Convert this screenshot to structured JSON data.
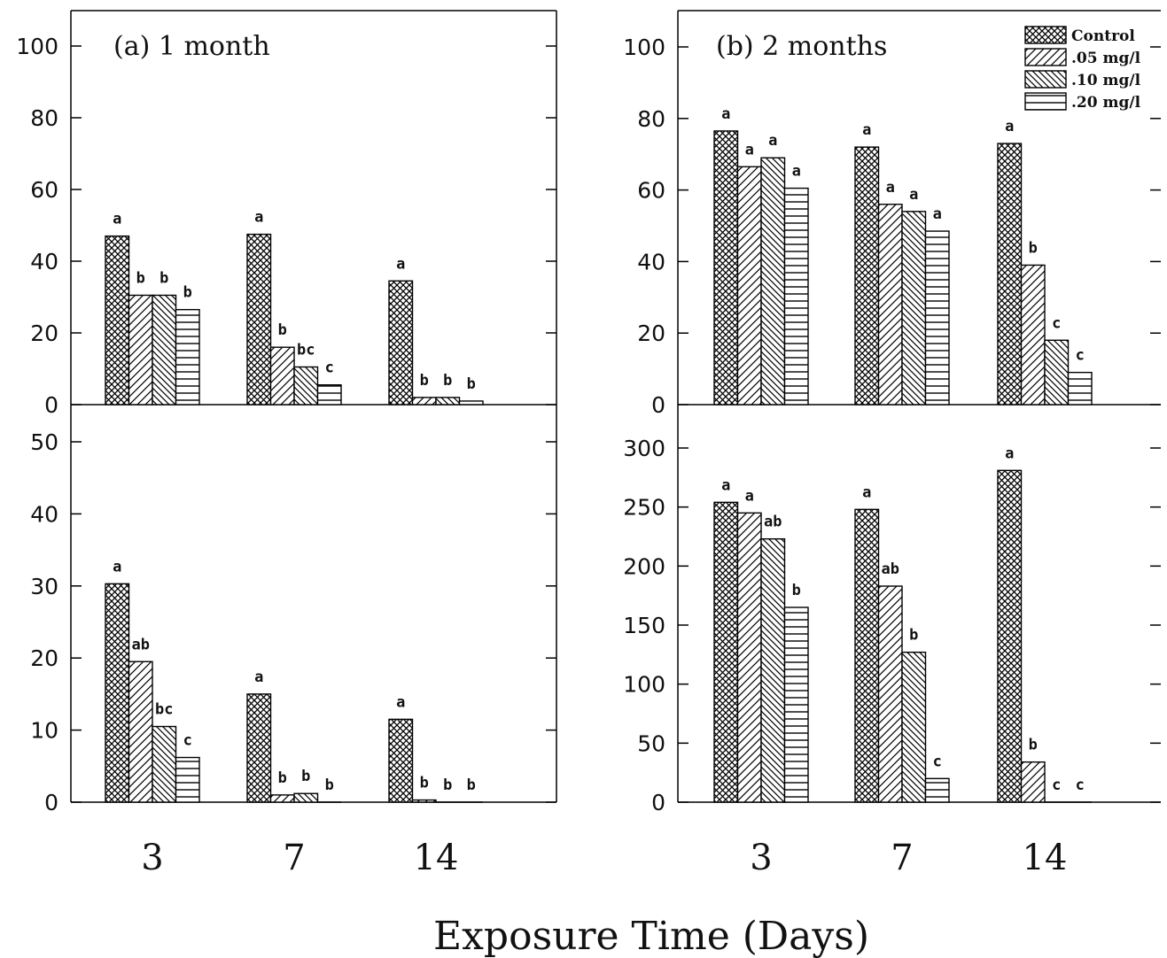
{
  "chart_data": [
    {
      "type": "bar",
      "id": "a-top",
      "title": "(a) 1 month",
      "categories": [
        "3",
        "7",
        "14"
      ],
      "ylim": [
        0,
        100
      ],
      "yticks": [
        0,
        20,
        40,
        60,
        80,
        100
      ],
      "ytick_labels": [
        "0",
        "20",
        "40",
        "60",
        "80",
        "100"
      ],
      "series": [
        {
          "values": [
            47,
            47.5,
            34.5
          ],
          "letters": [
            "a",
            "a",
            "a"
          ]
        },
        {
          "values": [
            30.5,
            16,
            2
          ],
          "letters": [
            "b",
            "b",
            "b"
          ]
        },
        {
          "values": [
            30.5,
            10.5,
            2
          ],
          "letters": [
            "b",
            "bc",
            "b"
          ]
        },
        {
          "values": [
            26.5,
            5.5,
            1
          ],
          "letters": [
            "b",
            "c",
            "b"
          ]
        }
      ]
    },
    {
      "type": "bar",
      "id": "a-bottom",
      "title": "",
      "categories": [
        "3",
        "7",
        "14"
      ],
      "ylim": [
        0,
        55
      ],
      "yticks": [
        0,
        10,
        20,
        30,
        40,
        50
      ],
      "ytick_labels": [
        "0",
        "10",
        "20",
        "30",
        "40",
        "50"
      ],
      "series": [
        {
          "values": [
            30.3,
            15,
            11.5
          ],
          "letters": [
            "a",
            "a",
            "a"
          ]
        },
        {
          "values": [
            19.5,
            1,
            0.3
          ],
          "letters": [
            "ab",
            "b",
            "b"
          ]
        },
        {
          "values": [
            10.5,
            1.2,
            0
          ],
          "letters": [
            "bc",
            "b",
            "b"
          ]
        },
        {
          "values": [
            6.2,
            0,
            0
          ],
          "letters": [
            "c",
            "b",
            "b"
          ]
        }
      ]
    },
    {
      "type": "bar",
      "id": "b-top",
      "title": "(b) 2 months",
      "categories": [
        "3",
        "7",
        "14"
      ],
      "ylim": [
        0,
        110
      ],
      "yticks": [
        0,
        20,
        40,
        60,
        80,
        100
      ],
      "ytick_labels": [
        "0",
        "20",
        "40",
        "60",
        "80",
        "100"
      ],
      "series": [
        {
          "name": "Control",
          "values": [
            76.5,
            72,
            73
          ],
          "letters": [
            "a",
            "a",
            "a"
          ]
        },
        {
          "name": ".05 mg/l",
          "values": [
            66.5,
            56,
            39
          ],
          "letters": [
            "a",
            "a",
            "b"
          ]
        },
        {
          "name": ".10 mg/l",
          "values": [
            69,
            54,
            18
          ],
          "letters": [
            "a",
            "a",
            "c"
          ]
        },
        {
          "name": ".20 mg/l",
          "values": [
            60.5,
            48.5,
            9
          ],
          "letters": [
            "a",
            "a",
            "c"
          ]
        }
      ]
    },
    {
      "type": "bar",
      "id": "b-bottom",
      "title": "",
      "categories": [
        "3",
        "7",
        "14"
      ],
      "ylim": [
        0,
        300
      ],
      "yticks": [
        0,
        50,
        100,
        150,
        200,
        250,
        300
      ],
      "ytick_labels": [
        "0",
        "50",
        "100",
        "150",
        "200",
        "250",
        "300"
      ],
      "series": [
        {
          "values": [
            254,
            248,
            281
          ],
          "letters": [
            "a",
            "a",
            "a"
          ]
        },
        {
          "values": [
            245,
            183,
            34
          ],
          "letters": [
            "a",
            "ab",
            "b"
          ]
        },
        {
          "values": [
            223,
            127,
            0
          ],
          "letters": [
            "ab",
            "b",
            "c"
          ]
        },
        {
          "values": [
            165,
            20,
            0
          ],
          "letters": [
            "b",
            "c",
            "c"
          ]
        }
      ]
    }
  ],
  "legend": {
    "placement": "top-right",
    "items": [
      "Control",
      ".05 mg/l",
      ".10 mg/l",
      ".20 mg/l"
    ]
  },
  "xlabel": "Exposure  Time  (Days)",
  "patterns": [
    "crosshatch",
    "diagonal-forward",
    "diagonal-back",
    "horizontal"
  ]
}
